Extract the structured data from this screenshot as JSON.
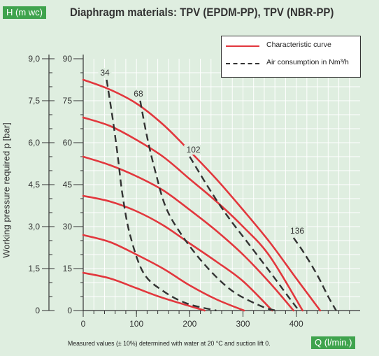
{
  "title": "Diaphragm materials: TPV (EPDM-PP), TPV (NBR-PP)",
  "left_axis_tag": "H (m wc)",
  "right_axis_tag": "Q (l/min.)",
  "footnote": "Measured values (± 10%) determined with water at 20 °C and suction lift 0.",
  "ylabel": "Working pressure required p [bar]",
  "legend": {
    "characteristic": "Characteristic curve",
    "air": "Air consumption in Nm³/h"
  },
  "colors": {
    "background": "#dfeee0",
    "grid": "#ffffff",
    "characteristic": "#e2373d",
    "air": "#333333",
    "tag": "#3fa34d"
  },
  "chart_data": {
    "type": "line",
    "grid": true,
    "legend_position": "top-right",
    "xlim": [
      0,
      520
    ],
    "ylim": [
      0,
      90
    ],
    "x_ticks": [
      0,
      100,
      200,
      300,
      400
    ],
    "x_tick_labels": [
      "0",
      "100",
      "200",
      "300",
      "400"
    ],
    "h_ticks": [
      0,
      15,
      30,
      45,
      60,
      75,
      90
    ],
    "h_tick_labels": [
      "0",
      "15",
      "30",
      "45",
      "60",
      "75",
      "90"
    ],
    "p_tick_labels": [
      "0",
      "1,5",
      "3,0",
      "4,5",
      "6,0",
      "7,5",
      "9,0"
    ],
    "characteristic_curves": [
      {
        "points": [
          [
            0,
            13.5
          ],
          [
            50,
            11.5
          ],
          [
            100,
            8
          ],
          [
            150,
            4.5
          ],
          [
            228,
            0
          ]
        ]
      },
      {
        "points": [
          [
            0,
            27
          ],
          [
            50,
            24.5
          ],
          [
            100,
            20
          ],
          [
            150,
            15
          ],
          [
            200,
            9
          ],
          [
            250,
            4
          ],
          [
            302,
            0
          ]
        ]
      },
      {
        "points": [
          [
            0,
            41
          ],
          [
            50,
            39
          ],
          [
            100,
            35.5
          ],
          [
            150,
            30.5
          ],
          [
            200,
            24
          ],
          [
            250,
            17.5
          ],
          [
            300,
            10.5
          ],
          [
            355,
            0
          ]
        ]
      },
      {
        "points": [
          [
            0,
            55
          ],
          [
            50,
            52
          ],
          [
            100,
            48
          ],
          [
            150,
            43
          ],
          [
            200,
            36
          ],
          [
            250,
            28.5
          ],
          [
            300,
            20
          ],
          [
            350,
            10
          ],
          [
            395,
            0
          ]
        ]
      },
      {
        "points": [
          [
            0,
            69
          ],
          [
            50,
            66
          ],
          [
            100,
            61
          ],
          [
            150,
            55
          ],
          [
            200,
            47
          ],
          [
            250,
            39
          ],
          [
            300,
            30
          ],
          [
            350,
            19.5
          ],
          [
            412,
            0
          ]
        ]
      },
      {
        "points": [
          [
            0,
            82.5
          ],
          [
            50,
            79
          ],
          [
            100,
            74
          ],
          [
            150,
            66.5
          ],
          [
            200,
            57
          ],
          [
            250,
            47
          ],
          [
            300,
            36
          ],
          [
            350,
            24.5
          ],
          [
            400,
            11.5
          ],
          [
            445,
            0
          ]
        ]
      }
    ],
    "air_consumption_curves": [
      {
        "label": "34",
        "points": [
          [
            44,
            82.5
          ],
          [
            55,
            69
          ],
          [
            65,
            55
          ],
          [
            74,
            41
          ],
          [
            88,
            27
          ],
          [
            113,
            13.5
          ],
          [
            150,
            7
          ],
          [
            195,
            2.5
          ],
          [
            250,
            0
          ]
        ]
      },
      {
        "label": "68",
        "points": [
          [
            107,
            75
          ],
          [
            120,
            62
          ],
          [
            135,
            50
          ],
          [
            155,
            37
          ],
          [
            185,
            27
          ],
          [
            230,
            16
          ],
          [
            280,
            7
          ],
          [
            335,
            1.5
          ],
          [
            362,
            0
          ]
        ]
      },
      {
        "label": "102",
        "points": [
          [
            200,
            55
          ],
          [
            235,
            44
          ],
          [
            270,
            34
          ],
          [
            310,
            24
          ],
          [
            350,
            14
          ],
          [
            385,
            5
          ],
          [
            405,
            0
          ]
        ]
      },
      {
        "label": "136",
        "points": [
          [
            395,
            26
          ],
          [
            415,
            20.5
          ],
          [
            440,
            12.5
          ],
          [
            460,
            5
          ],
          [
            475,
            0
          ]
        ]
      }
    ]
  }
}
